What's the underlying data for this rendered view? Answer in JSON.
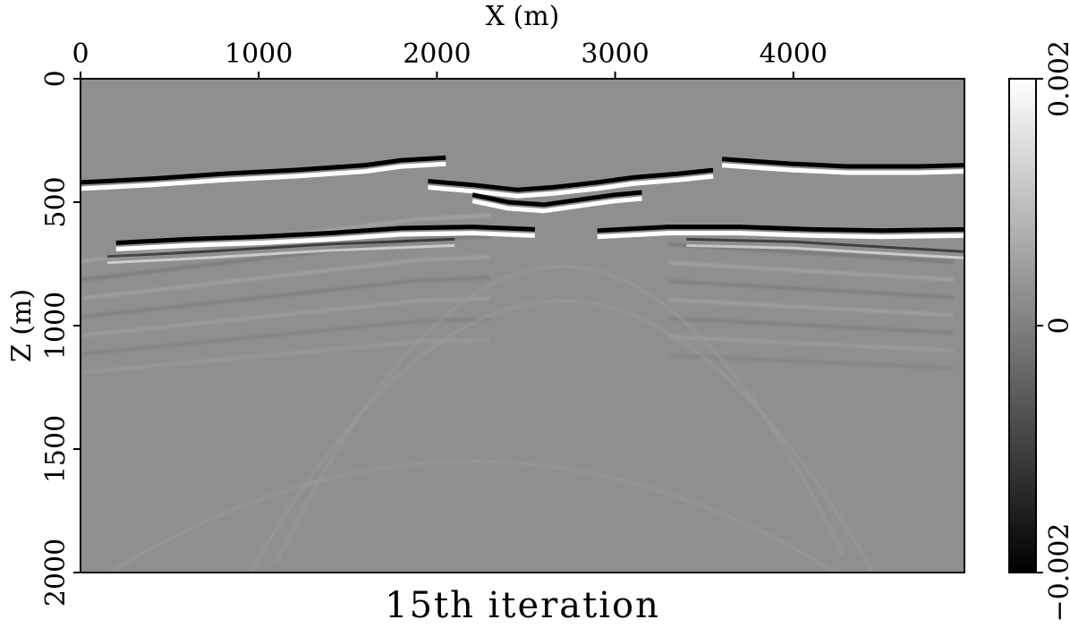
{
  "chart_data": {
    "type": "heatmap",
    "title": "15th iteration",
    "xlabel": "X (m)",
    "ylabel": "Z (m)",
    "xlim": [
      0,
      4960
    ],
    "ylim": [
      0,
      2000
    ],
    "y_inverted": true,
    "x_ticks": [
      0,
      1000,
      2000,
      3000,
      4000
    ],
    "x_tick_labels": [
      "0",
      "1000",
      "2000",
      "3000",
      "4000"
    ],
    "y_ticks": [
      0,
      500,
      1000,
      1500,
      2000
    ],
    "y_tick_labels": [
      "0",
      "500",
      "1000",
      "1500",
      "2000"
    ],
    "colormap": "grayscale",
    "colorbar": {
      "min": -0.002,
      "max": 0.002,
      "ticks": [
        -0.002,
        0,
        0.002
      ],
      "tick_labels": [
        "−0.002",
        "0",
        "0.002"
      ],
      "min_color": "#000000",
      "max_color": "#ffffff"
    },
    "background_color": "#8f8f8f",
    "reflectors": [
      {
        "name": "shallow-left",
        "points": [
          [
            0,
            420
          ],
          [
            400,
            405
          ],
          [
            800,
            385
          ],
          [
            1200,
            370
          ],
          [
            1600,
            350
          ],
          [
            1800,
            330
          ],
          [
            2050,
            320
          ]
        ]
      },
      {
        "name": "shallow-right",
        "points": [
          [
            3600,
            325
          ],
          [
            3800,
            335
          ],
          [
            4000,
            345
          ],
          [
            4300,
            355
          ],
          [
            4700,
            355
          ],
          [
            4960,
            350
          ]
        ]
      },
      {
        "name": "salt-top-a",
        "points": [
          [
            1950,
            415
          ],
          [
            2200,
            430
          ],
          [
            2450,
            450
          ],
          [
            2650,
            440
          ],
          [
            2900,
            420
          ],
          [
            3100,
            400
          ],
          [
            3350,
            385
          ],
          [
            3550,
            370
          ]
        ]
      },
      {
        "name": "salt-top-b",
        "points": [
          [
            2200,
            470
          ],
          [
            2400,
            500
          ],
          [
            2600,
            510
          ],
          [
            2800,
            490
          ],
          [
            3000,
            470
          ],
          [
            3150,
            460
          ]
        ]
      },
      {
        "name": "salt-base-left",
        "points": [
          [
            200,
            665
          ],
          [
            600,
            650
          ],
          [
            1000,
            640
          ],
          [
            1400,
            625
          ],
          [
            1800,
            605
          ],
          [
            2200,
            600
          ],
          [
            2550,
            610
          ]
        ]
      },
      {
        "name": "salt-base-right",
        "points": [
          [
            2900,
            615
          ],
          [
            3300,
            600
          ],
          [
            3700,
            600
          ],
          [
            4100,
            610
          ],
          [
            4500,
            615
          ],
          [
            4960,
            610
          ]
        ]
      },
      {
        "name": "deep-1",
        "points": [
          [
            150,
            720
          ],
          [
            700,
            700
          ],
          [
            1400,
            670
          ],
          [
            2100,
            650
          ]
        ]
      },
      {
        "name": "deep-1r",
        "points": [
          [
            3400,
            650
          ],
          [
            4000,
            660
          ],
          [
            4700,
            690
          ],
          [
            4960,
            700
          ]
        ]
      }
    ]
  }
}
